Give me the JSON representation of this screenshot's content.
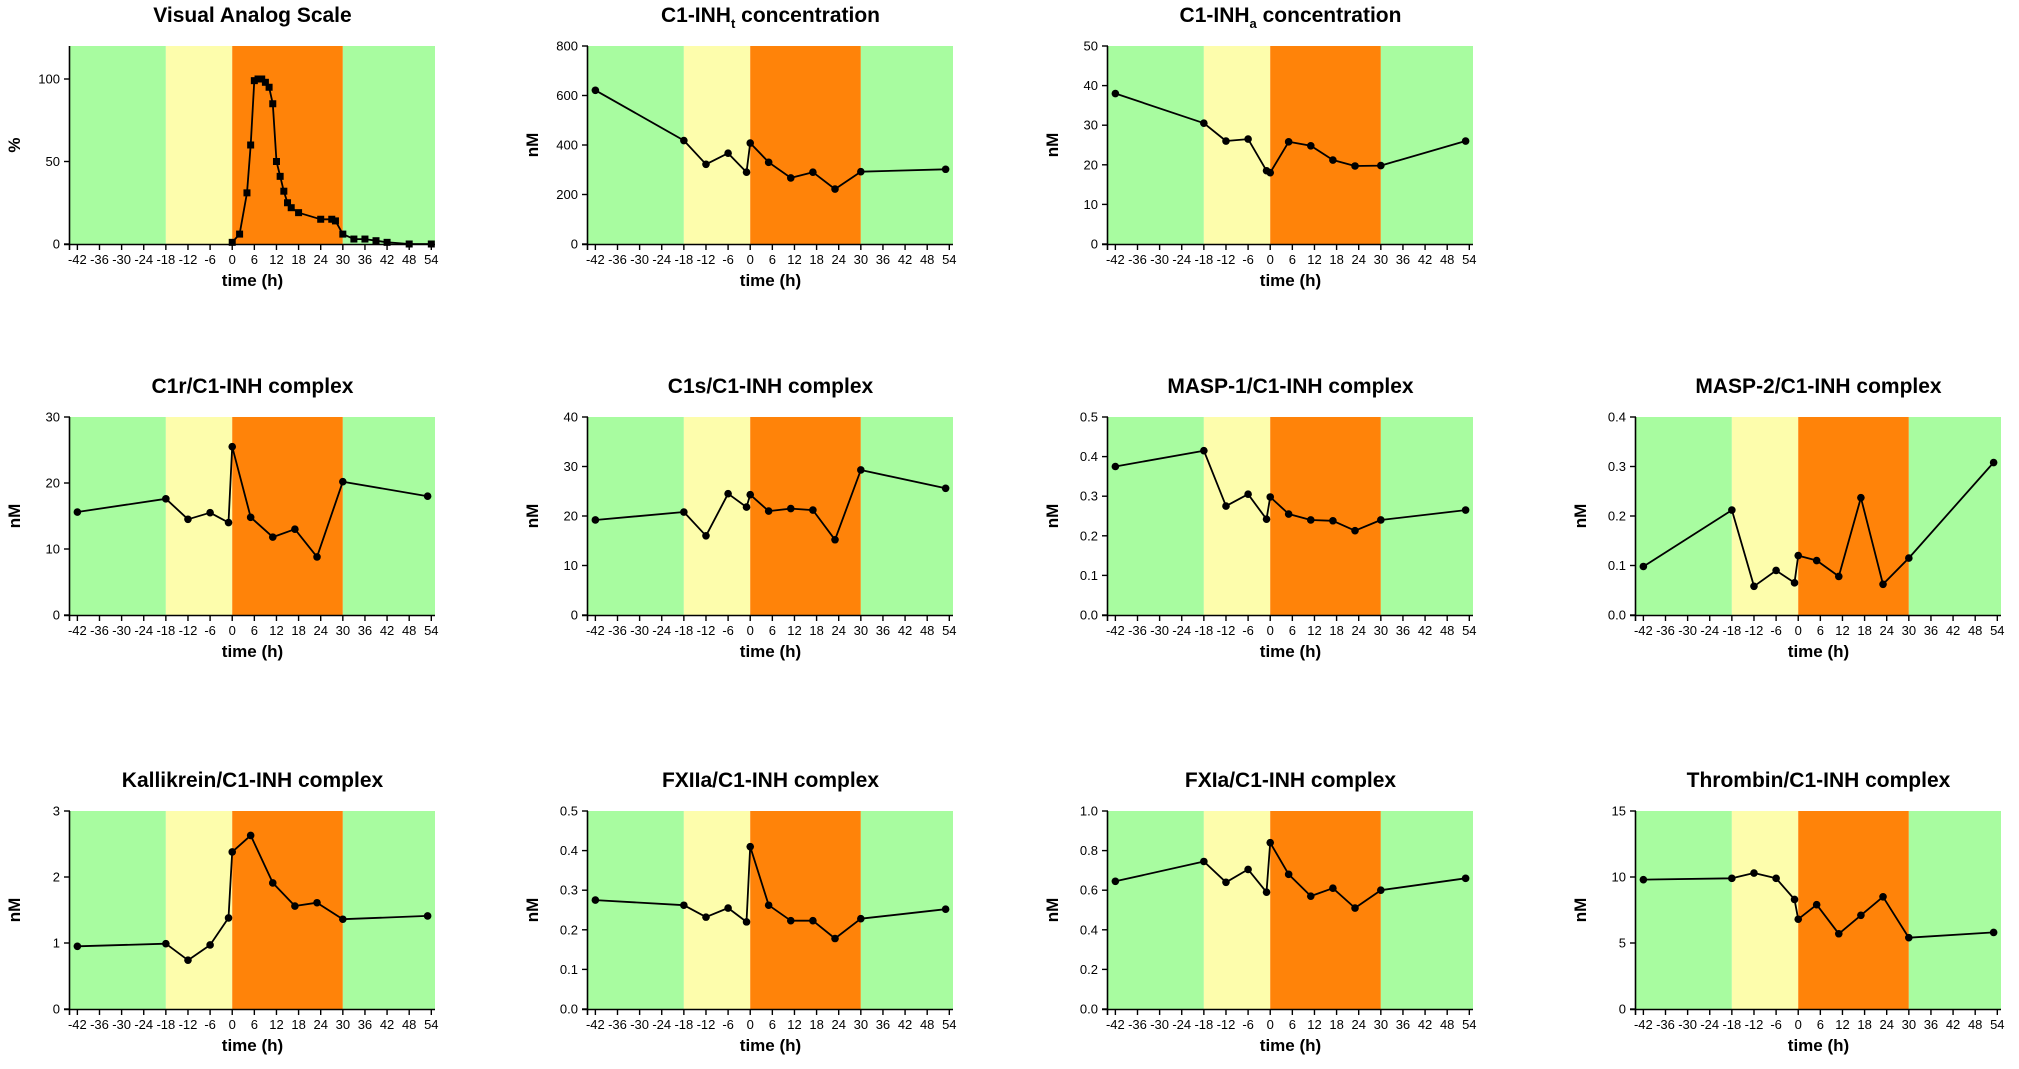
{
  "figure": {
    "phase_colors": {
      "baseline": "#a8fca0",
      "prodrome": "#fdfdac",
      "attack": "#ff8309",
      "recovery": "#a8fca0"
    },
    "phase_bounds_h": [
      -48,
      -18,
      0,
      30,
      56
    ],
    "line_color": "#000000",
    "marker_color": "#000000"
  },
  "chart_data": [
    {
      "id": "vas",
      "type": "line",
      "title": "Visual Analog Scale",
      "title_sub": null,
      "title_suffix": null,
      "xlabel": "time (h)",
      "ylabel": "%",
      "xlim": [
        -44,
        55
      ],
      "ylim": [
        0,
        120
      ],
      "yticks": [
        "0",
        "50",
        "100"
      ],
      "ytick_values": [
        0,
        50,
        100
      ],
      "xticks": [
        -42,
        -36,
        -30,
        -24,
        -18,
        -12,
        -6,
        0,
        6,
        12,
        18,
        24,
        30,
        36,
        42,
        48,
        54
      ],
      "marker": "square",
      "x": [
        0,
        2,
        4,
        5,
        6,
        7,
        8,
        9,
        10,
        11,
        12,
        13,
        14,
        15,
        16,
        18,
        24,
        27,
        28,
        30,
        33,
        36,
        39,
        42,
        48,
        54
      ],
      "y": [
        1,
        6,
        31,
        60,
        99,
        100,
        100,
        98,
        95,
        85,
        50,
        41,
        32,
        25,
        22,
        19,
        15,
        15,
        14,
        6,
        3,
        3,
        2,
        1,
        0,
        0
      ]
    },
    {
      "id": "c1inh_t",
      "type": "line",
      "title": "C1-INH",
      "title_sub": "t",
      "title_suffix": " concentration",
      "xlabel": "time (h)",
      "ylabel": "nM",
      "xlim": [
        -44,
        55
      ],
      "ylim": [
        0,
        800
      ],
      "yticks": [
        "0",
        "200",
        "400",
        "600",
        "800"
      ],
      "ytick_values": [
        0,
        200,
        400,
        600,
        800
      ],
      "xticks": [
        -42,
        -36,
        -30,
        -24,
        -18,
        -12,
        -6,
        0,
        6,
        12,
        18,
        24,
        30,
        36,
        42,
        48,
        54
      ],
      "marker": "circle",
      "x": [
        -42,
        -18,
        -12,
        -6,
        -1,
        0,
        5,
        11,
        17,
        23,
        30,
        53
      ],
      "y": [
        621,
        418,
        322,
        367,
        290,
        408,
        330,
        267,
        290,
        222,
        292,
        302
      ]
    },
    {
      "id": "c1inh_a",
      "type": "line",
      "title": "C1-INH",
      "title_sub": "a",
      "title_suffix": " concentration",
      "xlabel": "time (h)",
      "ylabel": "nM",
      "xlim": [
        -44,
        55
      ],
      "ylim": [
        0,
        50
      ],
      "yticks": [
        "0",
        "10",
        "20",
        "30",
        "40",
        "50"
      ],
      "ytick_values": [
        0,
        10,
        20,
        30,
        40,
        50
      ],
      "xticks": [
        -42,
        -36,
        -30,
        -24,
        -18,
        -12,
        -6,
        0,
        6,
        12,
        18,
        24,
        30,
        36,
        42,
        48,
        54
      ],
      "marker": "circle",
      "x": [
        -42,
        -18,
        -12,
        -6,
        -1,
        0,
        5,
        11,
        17,
        23,
        30,
        53
      ],
      "y": [
        38,
        30.5,
        26,
        26.5,
        18.5,
        18,
        25.8,
        24.8,
        21.2,
        19.7,
        19.8,
        26
      ]
    },
    {
      "id": "c1r",
      "type": "line",
      "title": "C1r/C1-INH complex",
      "title_sub": null,
      "title_suffix": null,
      "xlabel": "time (h)",
      "ylabel": "nM",
      "xlim": [
        -44,
        55
      ],
      "ylim": [
        0,
        30
      ],
      "yticks": [
        "0",
        "10",
        "20",
        "30"
      ],
      "ytick_values": [
        0,
        10,
        20,
        30
      ],
      "xticks": [
        -42,
        -36,
        -30,
        -24,
        -18,
        -12,
        -6,
        0,
        6,
        12,
        18,
        24,
        30,
        36,
        42,
        48,
        54
      ],
      "marker": "circle",
      "x": [
        -42,
        -18,
        -12,
        -6,
        -1,
        0,
        5,
        11,
        17,
        23,
        30,
        53
      ],
      "y": [
        15.6,
        17.6,
        14.5,
        15.5,
        14,
        25.5,
        14.8,
        11.8,
        13,
        8.8,
        20.2,
        18
      ]
    },
    {
      "id": "c1s",
      "type": "line",
      "title": "C1s/C1-INH complex",
      "title_sub": null,
      "title_suffix": null,
      "xlabel": "time (h)",
      "ylabel": "nM",
      "xlim": [
        -44,
        55
      ],
      "ylim": [
        0,
        40
      ],
      "yticks": [
        "0",
        "10",
        "20",
        "30",
        "40"
      ],
      "ytick_values": [
        0,
        10,
        20,
        30,
        40
      ],
      "xticks": [
        -42,
        -36,
        -30,
        -24,
        -18,
        -12,
        -6,
        0,
        6,
        12,
        18,
        24,
        30,
        36,
        42,
        48,
        54
      ],
      "marker": "circle",
      "x": [
        -42,
        -18,
        -12,
        -6,
        -1,
        0,
        5,
        11,
        17,
        23,
        30,
        53
      ],
      "y": [
        19.2,
        20.8,
        16,
        24.5,
        21.8,
        24.3,
        21,
        21.5,
        21.2,
        15.2,
        29.3,
        25.6
      ]
    },
    {
      "id": "masp1",
      "type": "line",
      "title": "MASP-1/C1-INH complex",
      "title_sub": null,
      "title_suffix": null,
      "xlabel": "time (h)",
      "ylabel": "nM",
      "xlim": [
        -44,
        55
      ],
      "ylim": [
        0,
        0.5
      ],
      "yticks": [
        "0.0",
        "0.1",
        "0.2",
        "0.3",
        "0.4",
        "0.5"
      ],
      "ytick_values": [
        0,
        0.1,
        0.2,
        0.3,
        0.4,
        0.5
      ],
      "xticks": [
        -42,
        -36,
        -30,
        -24,
        -18,
        -12,
        -6,
        0,
        6,
        12,
        18,
        24,
        30,
        36,
        42,
        48,
        54
      ],
      "marker": "circle",
      "x": [
        -42,
        -18,
        -12,
        -6,
        -1,
        0,
        5,
        11,
        17,
        23,
        30,
        53
      ],
      "y": [
        0.375,
        0.415,
        0.275,
        0.305,
        0.242,
        0.298,
        0.255,
        0.24,
        0.238,
        0.213,
        0.24,
        0.265
      ]
    },
    {
      "id": "masp2",
      "type": "line",
      "title": "MASP-2/C1-INH complex",
      "title_sub": null,
      "title_suffix": null,
      "xlabel": "time (h)",
      "ylabel": "nM",
      "xlim": [
        -44,
        55
      ],
      "ylim": [
        0,
        0.4
      ],
      "yticks": [
        "0.0",
        "0.1",
        "0.2",
        "0.3",
        "0.4"
      ],
      "ytick_values": [
        0,
        0.1,
        0.2,
        0.3,
        0.4
      ],
      "xticks": [
        -42,
        -36,
        -30,
        -24,
        -18,
        -12,
        -6,
        0,
        6,
        12,
        18,
        24,
        30,
        36,
        42,
        48,
        54
      ],
      "marker": "circle",
      "x": [
        -42,
        -18,
        -12,
        -6,
        -1,
        0,
        5,
        11,
        17,
        23,
        30,
        53
      ],
      "y": [
        0.098,
        0.212,
        0.058,
        0.09,
        0.065,
        0.12,
        0.11,
        0.078,
        0.237,
        0.062,
        0.115,
        0.308
      ]
    },
    {
      "id": "kallikrein",
      "type": "line",
      "title": "Kallikrein/C1-INH complex",
      "title_sub": null,
      "title_suffix": null,
      "xlabel": "time (h)",
      "ylabel": "nM",
      "xlim": [
        -44,
        55
      ],
      "ylim": [
        0,
        3
      ],
      "yticks": [
        "0",
        "1",
        "2",
        "3"
      ],
      "ytick_values": [
        0,
        1,
        2,
        3
      ],
      "xticks": [
        -42,
        -36,
        -30,
        -24,
        -18,
        -12,
        -6,
        0,
        6,
        12,
        18,
        24,
        30,
        36,
        42,
        48,
        54
      ],
      "marker": "circle",
      "x": [
        -42,
        -18,
        -12,
        -6,
        -1,
        0,
        5,
        11,
        17,
        23,
        30,
        53
      ],
      "y": [
        0.95,
        0.99,
        0.74,
        0.97,
        1.38,
        2.38,
        2.63,
        1.91,
        1.56,
        1.61,
        1.36,
        1.41
      ]
    },
    {
      "id": "fxiia",
      "type": "line",
      "title": "FXIIa/C1-INH complex",
      "title_sub": null,
      "title_suffix": null,
      "xlabel": "time (h)",
      "ylabel": "nM",
      "xlim": [
        -44,
        55
      ],
      "ylim": [
        0,
        0.5
      ],
      "yticks": [
        "0.0",
        "0.1",
        "0.2",
        "0.3",
        "0.4",
        "0.5"
      ],
      "ytick_values": [
        0,
        0.1,
        0.2,
        0.3,
        0.4,
        0.5
      ],
      "xticks": [
        -42,
        -36,
        -30,
        -24,
        -18,
        -12,
        -6,
        0,
        6,
        12,
        18,
        24,
        30,
        36,
        42,
        48,
        54
      ],
      "marker": "circle",
      "x": [
        -42,
        -18,
        -12,
        -6,
        -1,
        0,
        5,
        11,
        17,
        23,
        30,
        53
      ],
      "y": [
        0.275,
        0.262,
        0.232,
        0.255,
        0.22,
        0.41,
        0.262,
        0.223,
        0.223,
        0.178,
        0.228,
        0.252
      ]
    },
    {
      "id": "fxia",
      "type": "line",
      "title": "FXIa/C1-INH complex",
      "title_sub": null,
      "title_suffix": null,
      "xlabel": "time (h)",
      "ylabel": "nM",
      "xlim": [
        -44,
        55
      ],
      "ylim": [
        0,
        1
      ],
      "yticks": [
        "0.0",
        "0.2",
        "0.4",
        "0.6",
        "0.8",
        "1.0"
      ],
      "ytick_values": [
        0,
        0.2,
        0.4,
        0.6,
        0.8,
        1.0
      ],
      "xticks": [
        -42,
        -36,
        -30,
        -24,
        -18,
        -12,
        -6,
        0,
        6,
        12,
        18,
        24,
        30,
        36,
        42,
        48,
        54
      ],
      "marker": "circle",
      "x": [
        -42,
        -18,
        -12,
        -6,
        -1,
        0,
        5,
        11,
        17,
        23,
        30,
        53
      ],
      "y": [
        0.645,
        0.745,
        0.64,
        0.705,
        0.59,
        0.84,
        0.68,
        0.57,
        0.61,
        0.51,
        0.6,
        0.66
      ]
    },
    {
      "id": "thrombin",
      "type": "line",
      "title": "Thrombin/C1-INH complex",
      "title_sub": null,
      "title_suffix": null,
      "xlabel": "time (h)",
      "ylabel": "nM",
      "xlim": [
        -44,
        55
      ],
      "ylim": [
        0,
        15
      ],
      "yticks": [
        "0",
        "5",
        "10",
        "15"
      ],
      "ytick_values": [
        0,
        5,
        10,
        15
      ],
      "xticks": [
        -42,
        -36,
        -30,
        -24,
        -18,
        -12,
        -6,
        0,
        6,
        12,
        18,
        24,
        30,
        36,
        42,
        48,
        54
      ],
      "marker": "circle",
      "x": [
        -42,
        -18,
        -12,
        -6,
        -1,
        0,
        5,
        11,
        17,
        23,
        30,
        53
      ],
      "y": [
        9.8,
        9.9,
        10.3,
        9.9,
        8.3,
        6.8,
        7.9,
        5.7,
        7.1,
        8.5,
        5.4,
        5.8
      ]
    }
  ]
}
